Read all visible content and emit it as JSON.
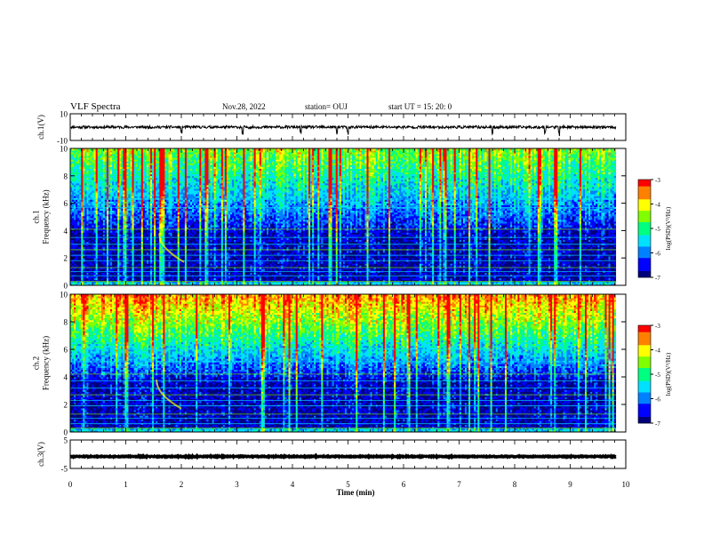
{
  "header": {
    "title": "VLF Spectra",
    "date": "Nov.28, 2022",
    "station": "station= OUJ",
    "start": "start  UT =   15: 20: 0"
  },
  "colors": {
    "colormap": [
      "#00007a",
      "#0000ff",
      "#0080ff",
      "#00e0ff",
      "#00ff80",
      "#80ff00",
      "#ffff00",
      "#ff8000",
      "#ff0000"
    ],
    "trace": "#000000"
  },
  "chart_data": [
    {
      "type": "line",
      "name": "ch.1",
      "ylabel": "ch.1(V)",
      "ylim": [
        -10,
        10
      ],
      "ytick_labels": [
        "10",
        "-10"
      ],
      "xlim": [
        0,
        10
      ],
      "baseline": 0.0,
      "noise_amplitude": 1.0,
      "spikes_x": [
        2.0,
        3.1,
        4.15,
        4.8,
        5.0,
        7.6,
        8.55,
        8.8
      ]
    },
    {
      "type": "heatmap",
      "name": "ch.1",
      "ylabel": "ch.1\nFrequency (kHz)",
      "ylim": [
        0,
        10
      ],
      "ytick_labels": [
        "0",
        "2",
        "4",
        "6",
        "8",
        "10"
      ],
      "xlim": [
        0,
        10
      ],
      "colorbar": {
        "label": "log(PSD)(V²/Hz)",
        "range": [
          -7,
          -3
        ],
        "tick_labels": [
          "-3",
          "-4",
          "-5",
          "-6",
          "-7"
        ]
      },
      "intensity_scale": 0.85,
      "whistler_trace_x": [
        1.6,
        2.05
      ],
      "narrowband_lines_khz": [
        0.3,
        0.7,
        1.0,
        1.3,
        1.8,
        2.2,
        2.6,
        3.0,
        3.5,
        4.1,
        5.7,
        6.3
      ]
    },
    {
      "type": "heatmap",
      "name": "ch.2",
      "ylabel": "ch.2\nFrequency (kHz)",
      "ylim": [
        0,
        10
      ],
      "ytick_labels": [
        "0",
        "2",
        "4",
        "6",
        "8",
        "10"
      ],
      "xlim": [
        0,
        10
      ],
      "colorbar": {
        "label": "log(PSD)(V²/Hz)",
        "range": [
          -7,
          -3
        ],
        "tick_labels": [
          "-3",
          "-4",
          "-5",
          "-6",
          "-7"
        ]
      },
      "intensity_scale": 1.2,
      "whistler_trace_x": [
        1.55,
        2.0
      ],
      "narrowband_lines_khz": [
        0.3,
        0.6,
        1.0,
        1.3,
        1.9,
        2.3,
        2.7,
        3.2,
        3.7,
        4.2,
        5.1,
        6.0
      ]
    },
    {
      "type": "line",
      "name": "ch.3",
      "ylabel": "ch.3(V)",
      "ylim": [
        -5,
        5
      ],
      "ytick_labels": [
        "5",
        "-5"
      ],
      "xlim": [
        0,
        10
      ],
      "baseline": -0.8,
      "noise_amplitude": 0.15
    }
  ],
  "x_axis": {
    "label": "Time (min)",
    "tick_labels": [
      "0",
      "1",
      "2",
      "3",
      "4",
      "5",
      "6",
      "7",
      "8",
      "9",
      "10"
    ]
  }
}
